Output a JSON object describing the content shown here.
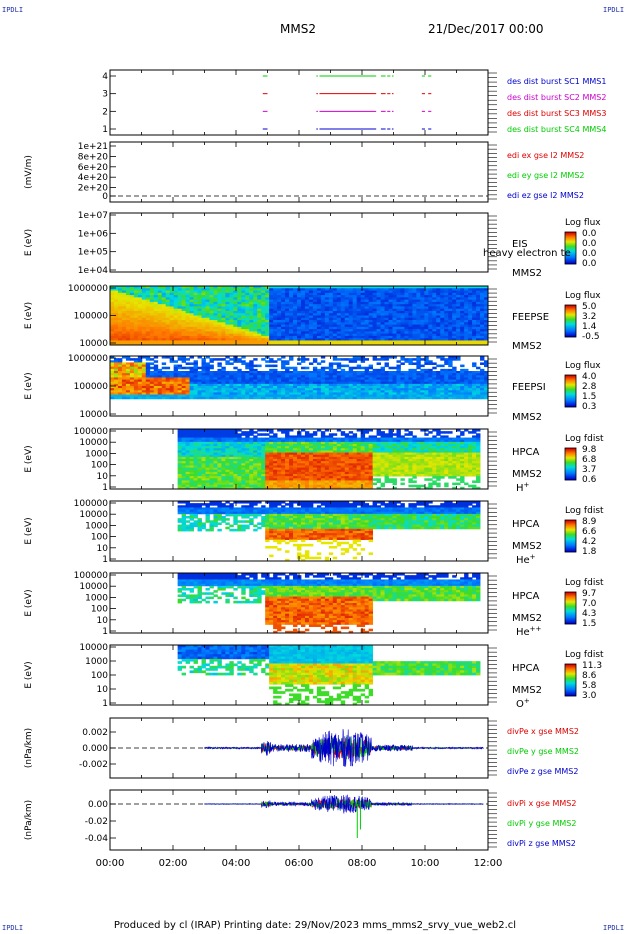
{
  "header": {
    "mission": "MMS2",
    "date": "21/Dec/2017 00:00",
    "corner_label": "IPDLI"
  },
  "footer": {
    "text": "Produced by cl (IRAP)   Printing date: 29/Nov/2023   mms_mms2_srvy_vue_web2.cl"
  },
  "colors": {
    "red": "#dd0000",
    "green": "#00cc00",
    "blue": "#0000cc",
    "magenta": "#cc00cc",
    "corner": "#2233aa"
  },
  "chart_data": [
    {
      "id": "burst",
      "type": "line",
      "ylabel": "",
      "yticks": [
        "4",
        "3",
        "2",
        "1"
      ],
      "ylim": [
        0.5,
        4.5
      ],
      "legend": [
        {
          "text": "des dist burst SC1 MMS1",
          "color": "#0000cc"
        },
        {
          "text": "des dist burst SC2 MMS2",
          "color": "#cc00cc"
        },
        {
          "text": "des dist burst SC3 MMS3",
          "color": "#dd0000"
        },
        {
          "text": "des dist burst SC4 MMS4",
          "color": "#00cc00"
        }
      ],
      "series": [
        {
          "level": 4,
          "color": "#00cc00",
          "segments": [
            [
              4.85,
              5.0
            ],
            [
              6.55,
              6.6
            ],
            [
              6.65,
              8.45
            ],
            [
              8.6,
              8.75
            ],
            [
              8.8,
              8.9
            ],
            [
              8.95,
              9.0
            ],
            [
              9.9,
              10.0
            ],
            [
              10.1,
              10.2
            ]
          ]
        },
        {
          "level": 3,
          "color": "#dd0000",
          "segments": [
            [
              4.85,
              5.0
            ],
            [
              6.55,
              6.6
            ],
            [
              6.65,
              8.45
            ],
            [
              8.6,
              8.75
            ],
            [
              8.8,
              8.9
            ],
            [
              8.95,
              9.0
            ],
            [
              9.9,
              10.0
            ],
            [
              10.1,
              10.2
            ]
          ]
        },
        {
          "level": 2,
          "color": "#cc00cc",
          "segments": [
            [
              4.85,
              5.0
            ],
            [
              6.55,
              6.6
            ],
            [
              6.65,
              8.45
            ],
            [
              8.6,
              8.75
            ],
            [
              8.8,
              8.9
            ],
            [
              8.95,
              9.0
            ],
            [
              9.9,
              10.0
            ],
            [
              10.1,
              10.2
            ]
          ]
        },
        {
          "level": 1,
          "color": "#0000cc",
          "segments": [
            [
              4.85,
              5.0
            ],
            [
              6.55,
              6.6
            ],
            [
              6.65,
              8.45
            ],
            [
              8.6,
              8.75
            ],
            [
              8.8,
              8.9
            ],
            [
              8.95,
              9.0
            ],
            [
              9.9,
              10.0
            ],
            [
              10.1,
              10.2
            ]
          ]
        }
      ]
    },
    {
      "id": "edi",
      "type": "line",
      "ylabel": "(mV/m)",
      "yticks": [
        "1e+21",
        "8e+20",
        "6e+20",
        "4e+20",
        "2e+20",
        "0"
      ],
      "ylim": [
        0,
        1e+21
      ],
      "legend": [
        {
          "text": "edi ex gse l2 MMS2",
          "color": "#dd0000"
        },
        {
          "text": "edi ey gse l2 MMS2",
          "color": "#00cc00"
        },
        {
          "text": "edi ez gse l2 MMS2",
          "color": "#0000cc"
        }
      ]
    },
    {
      "id": "eis",
      "type": "heatmap",
      "ylabel": "E (eV)",
      "yticks": [
        "1e+07",
        "1e+06",
        "1e+05",
        "1e+04"
      ],
      "log": true,
      "label_lines": [
        "EIS",
        "MMS2"
      ],
      "overlay_text": "heavy electron te",
      "colorbar_title": "Log flux",
      "colorbar_ticks": [
        "0.0",
        "0.0",
        "0.0",
        "0.0"
      ],
      "cmap": "rainbow"
    },
    {
      "id": "feepse",
      "type": "heatmap",
      "ylabel": "E (eV)",
      "yticks": [
        "1000000",
        "100000",
        "10000"
      ],
      "log": true,
      "label_lines": [
        "FEEPSE",
        "MMS2"
      ],
      "colorbar_title": "Log flux",
      "colorbar_ticks": [
        "5.0",
        "3.2",
        "1.4",
        "-0.5"
      ],
      "cmap": "rainbow"
    },
    {
      "id": "feepsi",
      "type": "heatmap",
      "ylabel": "E (eV)",
      "yticks": [
        "1000000",
        "100000",
        "10000"
      ],
      "log": true,
      "label_lines": [
        "FEEPSI",
        "MMS2"
      ],
      "colorbar_title": "Log flux",
      "colorbar_ticks": [
        "4.0",
        "2.8",
        "1.5",
        "0.3"
      ],
      "cmap": "rainbow"
    },
    {
      "id": "hpca_h",
      "type": "heatmap",
      "ylabel": "E (eV)",
      "yticks": [
        "100000",
        "10000",
        "1000",
        "100",
        "10",
        "1"
      ],
      "log": true,
      "label_lines": [
        "HPCA",
        "MMS2"
      ],
      "species": "H",
      "species_sup": "+",
      "colorbar_title": "Log fdist",
      "colorbar_ticks": [
        "9.8",
        "6.8",
        "3.7",
        "0.6"
      ],
      "cmap": "rainbow"
    },
    {
      "id": "hpca_he",
      "type": "heatmap",
      "ylabel": "E (eV)",
      "yticks": [
        "100000",
        "10000",
        "1000",
        "100",
        "10",
        "1"
      ],
      "log": true,
      "label_lines": [
        "HPCA",
        "MMS2"
      ],
      "species": "He",
      "species_sup": "+",
      "colorbar_title": "Log fdist",
      "colorbar_ticks": [
        "8.9",
        "6.6",
        "4.2",
        "1.8"
      ],
      "cmap": "rainbow"
    },
    {
      "id": "hpca_he2",
      "type": "heatmap",
      "ylabel": "E (eV)",
      "yticks": [
        "100000",
        "10000",
        "1000",
        "100",
        "10",
        "1"
      ],
      "log": true,
      "label_lines": [
        "HPCA",
        "MMS2"
      ],
      "species": "He",
      "species_sup": "++",
      "colorbar_title": "Log fdist",
      "colorbar_ticks": [
        "9.7",
        "7.0",
        "4.3",
        "1.5"
      ],
      "cmap": "rainbow"
    },
    {
      "id": "hpca_o",
      "type": "heatmap",
      "ylabel": "E (eV)",
      "yticks": [
        "10000",
        "1000",
        "100",
        "10",
        "1"
      ],
      "log": true,
      "label_lines": [
        "HPCA",
        "MMS2"
      ],
      "species": "O",
      "species_sup": "+",
      "colorbar_title": "Log fdist",
      "colorbar_ticks": [
        "11.3",
        "8.6",
        "5.8",
        "3.0"
      ],
      "cmap": "rainbow"
    },
    {
      "id": "divpe",
      "type": "line",
      "ylabel": "(nPa/km)",
      "yticks": [
        "0.002",
        "0.000",
        "-0.002"
      ],
      "ylim": [
        -0.0035,
        0.0035
      ],
      "legend": [
        {
          "text": "divPe x gse MMS2",
          "color": "#dd0000"
        },
        {
          "text": "divPe y gse MMS2",
          "color": "#00cc00"
        },
        {
          "text": "divPe z gse MMS2",
          "color": "#0000cc"
        }
      ]
    },
    {
      "id": "divpi",
      "type": "line",
      "ylabel": "(nPa/km)",
      "yticks": [
        "0.00",
        "-0.02",
        "-0.04"
      ],
      "ylim": [
        -0.048,
        0.008
      ],
      "legend": [
        {
          "text": "divPi x gse MMS2",
          "color": "#dd0000"
        },
        {
          "text": "divPi y gse MMS2",
          "color": "#00cc00"
        },
        {
          "text": "divPi z gse MMS2",
          "color": "#0000cc"
        }
      ],
      "xticks": [
        "00:00",
        "02:00",
        "04:00",
        "06:00",
        "08:00",
        "10:00",
        "12:00"
      ],
      "xlim_hours": [
        0,
        12
      ]
    }
  ]
}
